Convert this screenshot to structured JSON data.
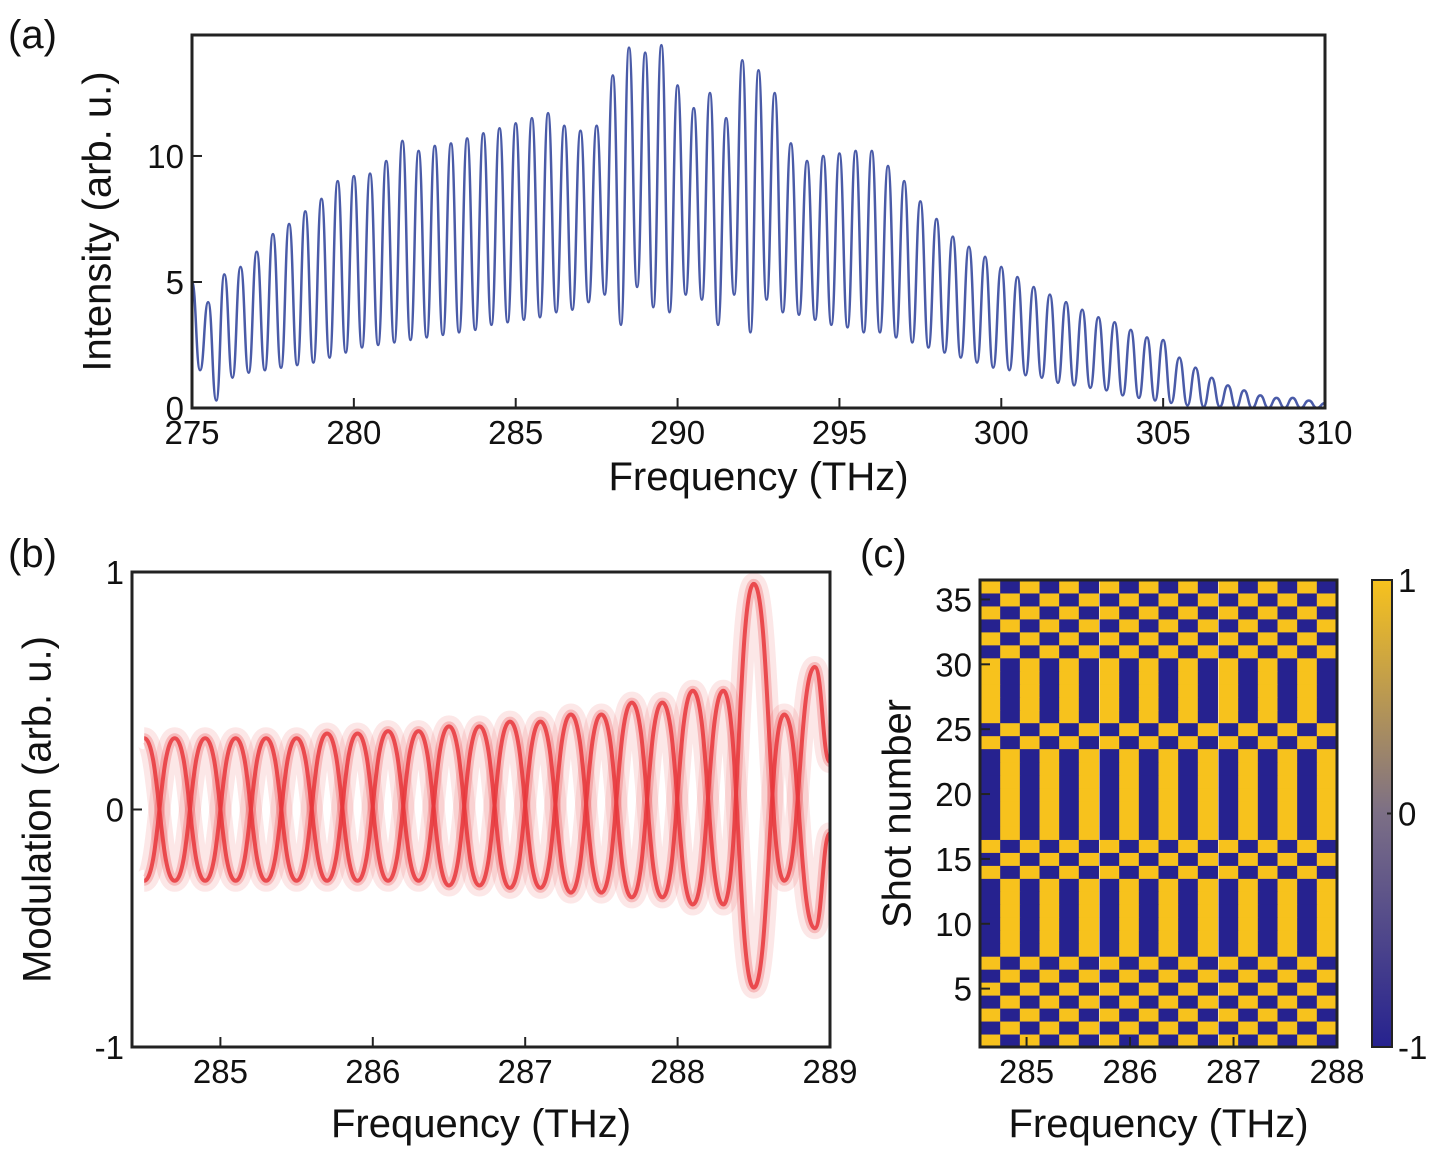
{
  "chart_data": [
    {
      "type": "line",
      "label": "(a)",
      "xlabel": "Frequency (THz)",
      "ylabel": "Intensity (arb. u.)",
      "xlim": [
        275,
        310
      ],
      "ylim": [
        0,
        14.8
      ],
      "xticks": [
        275,
        280,
        285,
        290,
        295,
        300,
        305,
        310
      ],
      "yticks": [
        0,
        5,
        10
      ],
      "x": [
        275,
        275.25,
        275.5,
        275.75,
        276,
        276.25,
        276.5,
        276.75,
        277,
        277.25,
        277.5,
        277.75,
        278,
        278.25,
        278.5,
        278.75,
        279,
        279.25,
        279.5,
        279.75,
        280,
        280.25,
        280.5,
        280.75,
        281,
        281.25,
        281.5,
        281.75,
        282,
        282.25,
        282.5,
        282.75,
        283,
        283.25,
        283.5,
        283.75,
        284,
        284.25,
        284.5,
        284.75,
        285,
        285.25,
        285.5,
        285.75,
        286,
        286.25,
        286.5,
        286.75,
        287,
        287.25,
        287.5,
        287.75,
        288,
        288.25,
        288.5,
        288.75,
        289,
        289.25,
        289.5,
        289.75,
        290,
        290.25,
        290.5,
        290.75,
        291,
        291.25,
        291.5,
        291.75,
        292,
        292.25,
        292.5,
        292.75,
        293,
        293.25,
        293.5,
        293.75,
        294,
        294.25,
        294.5,
        294.75,
        295,
        295.25,
        295.5,
        295.75,
        296,
        296.25,
        296.5,
        296.75,
        297,
        297.25,
        297.5,
        297.75,
        298,
        298.25,
        298.5,
        298.75,
        299,
        299.25,
        299.5,
        299.75,
        300,
        300.25,
        300.5,
        300.75,
        301,
        301.25,
        301.5,
        301.75,
        302,
        302.25,
        302.5,
        302.75,
        303,
        303.25,
        303.5,
        303.75,
        304,
        304.25,
        304.5,
        304.75,
        305,
        305.25,
        305.5,
        305.75,
        306,
        306.25,
        306.5,
        306.75,
        307,
        307.25,
        307.5,
        307.75,
        308,
        308.25,
        308.5,
        308.75,
        309,
        309.25,
        309.5,
        309.75,
        310
      ],
      "series": [
        {
          "color": "#4a5ba8",
          "values": [
            5.0,
            1.5,
            4.2,
            0.3,
            5.3,
            1.2,
            5.6,
            1.4,
            6.2,
            1.5,
            6.9,
            1.6,
            7.3,
            1.7,
            7.8,
            1.8,
            8.3,
            2.0,
            9.0,
            2.2,
            9.2,
            2.4,
            9.3,
            2.5,
            9.8,
            2.6,
            10.6,
            2.7,
            10.2,
            2.8,
            10.4,
            2.9,
            10.5,
            3.0,
            10.7,
            3.1,
            10.9,
            3.3,
            11.1,
            3.4,
            11.3,
            3.5,
            11.5,
            3.6,
            11.7,
            3.8,
            11.2,
            3.9,
            11.0,
            4.2,
            11.2,
            4.5,
            13.2,
            3.3,
            14.3,
            4.8,
            14.1,
            4.0,
            14.4,
            3.8,
            12.8,
            4.5,
            11.9,
            4.3,
            12.5,
            3.3,
            11.5,
            4.5,
            13.8,
            3.0,
            13.4,
            4.3,
            12.5,
            3.8,
            10.5,
            3.7,
            9.8,
            3.5,
            10.0,
            3.3,
            10.1,
            3.2,
            10.2,
            3.0,
            10.2,
            3.0,
            9.6,
            2.8,
            9.0,
            2.6,
            8.2,
            2.4,
            7.5,
            2.2,
            6.8,
            2.0,
            6.4,
            1.8,
            6.0,
            1.6,
            5.6,
            1.5,
            5.2,
            1.3,
            4.8,
            1.2,
            4.5,
            1.0,
            4.2,
            0.9,
            3.9,
            0.8,
            3.6,
            0.7,
            3.4,
            0.5,
            3.1,
            0.4,
            2.8,
            0.3,
            2.7,
            0.2,
            2.0,
            0.1,
            1.6,
            0.05,
            1.2,
            0.05,
            0.9,
            0,
            0.7,
            0,
            0.5,
            0,
            0.4,
            0,
            0.4,
            0,
            0.3,
            0,
            0.2
          ]
        }
      ]
    },
    {
      "type": "line",
      "label": "(b)",
      "xlabel": "Frequency (THz)",
      "ylabel": "Modulation (arb. u.)",
      "xlim": [
        284.42,
        289
      ],
      "ylim": [
        -1,
        1
      ],
      "xticks": [
        285,
        286,
        287,
        288,
        289
      ],
      "yticks": [
        -1,
        0,
        1
      ],
      "x": [
        284.5,
        284.7,
        284.9,
        285.1,
        285.3,
        285.5,
        285.7,
        285.9,
        286.1,
        286.3,
        286.5,
        286.7,
        286.9,
        287.1,
        287.3,
        287.5,
        287.7,
        287.9,
        288.1,
        288.3,
        288.5,
        288.7,
        288.9,
        289
      ],
      "series": [
        {
          "color": "#e8363b",
          "values": [
            0.3,
            -0.3,
            0.3,
            -0.3,
            0.3,
            -0.3,
            0.32,
            -0.3,
            0.33,
            -0.3,
            0.35,
            -0.32,
            0.37,
            -0.33,
            0.4,
            -0.35,
            0.45,
            -0.37,
            0.5,
            -0.4,
            0.95,
            -0.3,
            0.6,
            0.2
          ]
        },
        {
          "color": "#e8363b",
          "values": [
            -0.3,
            0.3,
            -0.3,
            0.3,
            -0.3,
            0.3,
            -0.3,
            0.32,
            -0.3,
            0.33,
            -0.32,
            0.35,
            -0.33,
            0.37,
            -0.35,
            0.4,
            -0.37,
            0.45,
            -0.4,
            0.5,
            -0.75,
            0.4,
            -0.5,
            -0.1
          ]
        }
      ]
    },
    {
      "type": "heatmap",
      "label": "(c)",
      "xlabel": "Frequency (THz)",
      "ylabel": "Shot number",
      "xlim": [
        284.55,
        288
      ],
      "ylim": [
        0.5,
        36.5
      ],
      "xticks": [
        285,
        286,
        287,
        288
      ],
      "yticks": [
        5,
        10,
        15,
        20,
        25,
        30,
        35
      ],
      "clim": [
        -1,
        1
      ],
      "cticks": [
        -1,
        0,
        1
      ],
      "colormap": [
        "#26228f",
        "#7c6f86",
        "#f7c21d"
      ],
      "x": [
        284.65,
        284.84,
        285.03,
        285.22,
        285.41,
        285.6,
        285.8,
        285.99,
        286.18,
        286.37,
        286.56,
        286.75,
        286.95,
        287.14,
        287.33,
        287.52,
        287.71,
        287.9
      ],
      "y": [
        1,
        2,
        3,
        4,
        5,
        6,
        7,
        8,
        9,
        10,
        11,
        12,
        13,
        14,
        15,
        16,
        17,
        18,
        19,
        20,
        21,
        22,
        23,
        24,
        25,
        26,
        27,
        28,
        29,
        30,
        31,
        32,
        33,
        34,
        35,
        36
      ],
      "z": [
        [
          1,
          -1,
          1,
          -1,
          1,
          -1,
          1,
          -1,
          1,
          -1,
          1,
          -1,
          1,
          -1,
          1,
          -1,
          1,
          -1
        ],
        [
          -1,
          1,
          -1,
          1,
          -1,
          1,
          -1,
          1,
          -1,
          1,
          -1,
          1,
          -1,
          1,
          -1,
          1,
          -1,
          1
        ],
        [
          1,
          -1,
          1,
          -1,
          1,
          -1,
          1,
          -1,
          1,
          -1,
          1,
          -1,
          1,
          -1,
          1,
          -1,
          1,
          -1
        ],
        [
          -1,
          1,
          -1,
          1,
          -1,
          1,
          -1,
          1,
          -1,
          1,
          -1,
          1,
          -1,
          1,
          -1,
          1,
          -1,
          1
        ],
        [
          1,
          -1,
          1,
          -1,
          1,
          -1,
          1,
          -1,
          1,
          -1,
          1,
          -1,
          1,
          -1,
          1,
          -1,
          1,
          -1
        ],
        [
          -1,
          1,
          -1,
          1,
          -1,
          1,
          -1,
          1,
          -1,
          1,
          -1,
          1,
          -1,
          1,
          -1,
          1,
          -1,
          1
        ],
        [
          1,
          -1,
          1,
          -1,
          1,
          -1,
          1,
          -1,
          1,
          -1,
          1,
          -1,
          1,
          -1,
          1,
          -1,
          1,
          -1
        ],
        [
          -1,
          1,
          -1,
          1,
          -1,
          1,
          -1,
          1,
          -1,
          1,
          -1,
          1,
          -1,
          1,
          -1,
          1,
          -1,
          1
        ],
        [
          -1,
          1,
          -1,
          1,
          -1,
          1,
          -1,
          1,
          -1,
          1,
          -1,
          1,
          -1,
          1,
          -1,
          1,
          -1,
          1
        ],
        [
          -1,
          1,
          -1,
          1,
          -1,
          1,
          -1,
          1,
          -1,
          1,
          -1,
          1,
          -1,
          1,
          -1,
          1,
          -1,
          1
        ],
        [
          -1,
          1,
          -1,
          1,
          -1,
          1,
          -1,
          1,
          -1,
          1,
          -1,
          1,
          -1,
          1,
          -1,
          1,
          -1,
          1
        ],
        [
          -1,
          1,
          -1,
          1,
          -1,
          1,
          -1,
          1,
          -1,
          1,
          -1,
          1,
          -1,
          1,
          -1,
          1,
          -1,
          1
        ],
        [
          -1,
          1,
          -1,
          1,
          -1,
          1,
          -1,
          1,
          -1,
          1,
          -1,
          1,
          -1,
          1,
          -1,
          1,
          -1,
          1
        ],
        [
          1,
          -1,
          1,
          -1,
          1,
          -1,
          1,
          -1,
          1,
          -1,
          1,
          -1,
          1,
          -1,
          1,
          -1,
          1,
          -1
        ],
        [
          -1,
          1,
          -1,
          1,
          -1,
          1,
          -1,
          1,
          -1,
          1,
          -1,
          1,
          -1,
          1,
          -1,
          1,
          -1,
          1
        ],
        [
          1,
          -1,
          1,
          -1,
          1,
          -1,
          1,
          -1,
          1,
          -1,
          1,
          -1,
          1,
          -1,
          1,
          -1,
          1,
          -1
        ],
        [
          -1,
          1,
          -1,
          1,
          -1,
          1,
          -1,
          1,
          -1,
          1,
          -1,
          1,
          -1,
          1,
          -1,
          1,
          -1,
          1
        ],
        [
          -1,
          1,
          -1,
          1,
          -1,
          1,
          -1,
          1,
          -1,
          1,
          -1,
          1,
          -1,
          1,
          -1,
          1,
          -1,
          1
        ],
        [
          -1,
          1,
          -1,
          1,
          -1,
          1,
          -1,
          1,
          -1,
          1,
          -1,
          1,
          -1,
          1,
          -1,
          1,
          -1,
          1
        ],
        [
          -1,
          1,
          -1,
          1,
          -1,
          1,
          -1,
          1,
          -1,
          1,
          -1,
          1,
          -1,
          1,
          -1,
          1,
          -1,
          1
        ],
        [
          -1,
          1,
          -1,
          1,
          -1,
          1,
          -1,
          1,
          -1,
          1,
          -1,
          1,
          -1,
          1,
          -1,
          1,
          -1,
          1
        ],
        [
          -1,
          1,
          -1,
          1,
          -1,
          1,
          -1,
          1,
          -1,
          1,
          -1,
          1,
          -1,
          1,
          -1,
          1,
          -1,
          1
        ],
        [
          -1,
          1,
          -1,
          1,
          -1,
          1,
          -1,
          1,
          -1,
          1,
          -1,
          1,
          -1,
          1,
          -1,
          1,
          -1,
          1
        ],
        [
          1,
          -1,
          1,
          -1,
          1,
          -1,
          1,
          -1,
          1,
          -1,
          1,
          -1,
          1,
          -1,
          1,
          -1,
          1,
          -1
        ],
        [
          -1,
          1,
          -1,
          1,
          -1,
          1,
          -1,
          1,
          -1,
          1,
          -1,
          1,
          -1,
          1,
          -1,
          1,
          -1,
          1
        ],
        [
          1,
          -1,
          1,
          -1,
          1,
          -1,
          1,
          -1,
          1,
          -1,
          1,
          -1,
          1,
          -1,
          1,
          -1,
          1,
          -1
        ],
        [
          1,
          -1,
          1,
          -1,
          1,
          -1,
          1,
          -1,
          1,
          -1,
          1,
          -1,
          1,
          -1,
          1,
          -1,
          1,
          -1
        ],
        [
          1,
          -1,
          1,
          -1,
          1,
          -1,
          1,
          -1,
          1,
          -1,
          1,
          -1,
          1,
          -1,
          1,
          -1,
          1,
          -1
        ],
        [
          1,
          -1,
          1,
          -1,
          1,
          -1,
          1,
          -1,
          1,
          -1,
          1,
          -1,
          1,
          -1,
          1,
          -1,
          1,
          -1
        ],
        [
          1,
          -1,
          1,
          -1,
          1,
          -1,
          1,
          -1,
          1,
          -1,
          1,
          -1,
          1,
          -1,
          1,
          -1,
          1,
          -1
        ],
        [
          -1,
          1,
          -1,
          1,
          -1,
          1,
          -1,
          1,
          -1,
          1,
          -1,
          1,
          -1,
          1,
          -1,
          1,
          -1,
          1
        ],
        [
          1,
          -1,
          1,
          -1,
          1,
          -1,
          1,
          -1,
          1,
          -1,
          1,
          -1,
          1,
          -1,
          1,
          -1,
          1,
          -1
        ],
        [
          -1,
          1,
          -1,
          1,
          -1,
          1,
          -1,
          1,
          -1,
          1,
          -1,
          1,
          -1,
          1,
          -1,
          1,
          -1,
          1
        ],
        [
          1,
          -1,
          1,
          -1,
          1,
          -1,
          1,
          -1,
          1,
          -1,
          1,
          -1,
          1,
          -1,
          1,
          -1,
          1,
          -1
        ],
        [
          -1,
          1,
          -1,
          1,
          -1,
          1,
          -1,
          1,
          -1,
          1,
          -1,
          1,
          -1,
          1,
          -1,
          1,
          -1,
          1
        ],
        [
          1,
          -1,
          1,
          -1,
          1,
          -1,
          1,
          -1,
          1,
          -1,
          1,
          -1,
          1,
          -1,
          1,
          -1,
          1,
          -1
        ]
      ]
    }
  ]
}
